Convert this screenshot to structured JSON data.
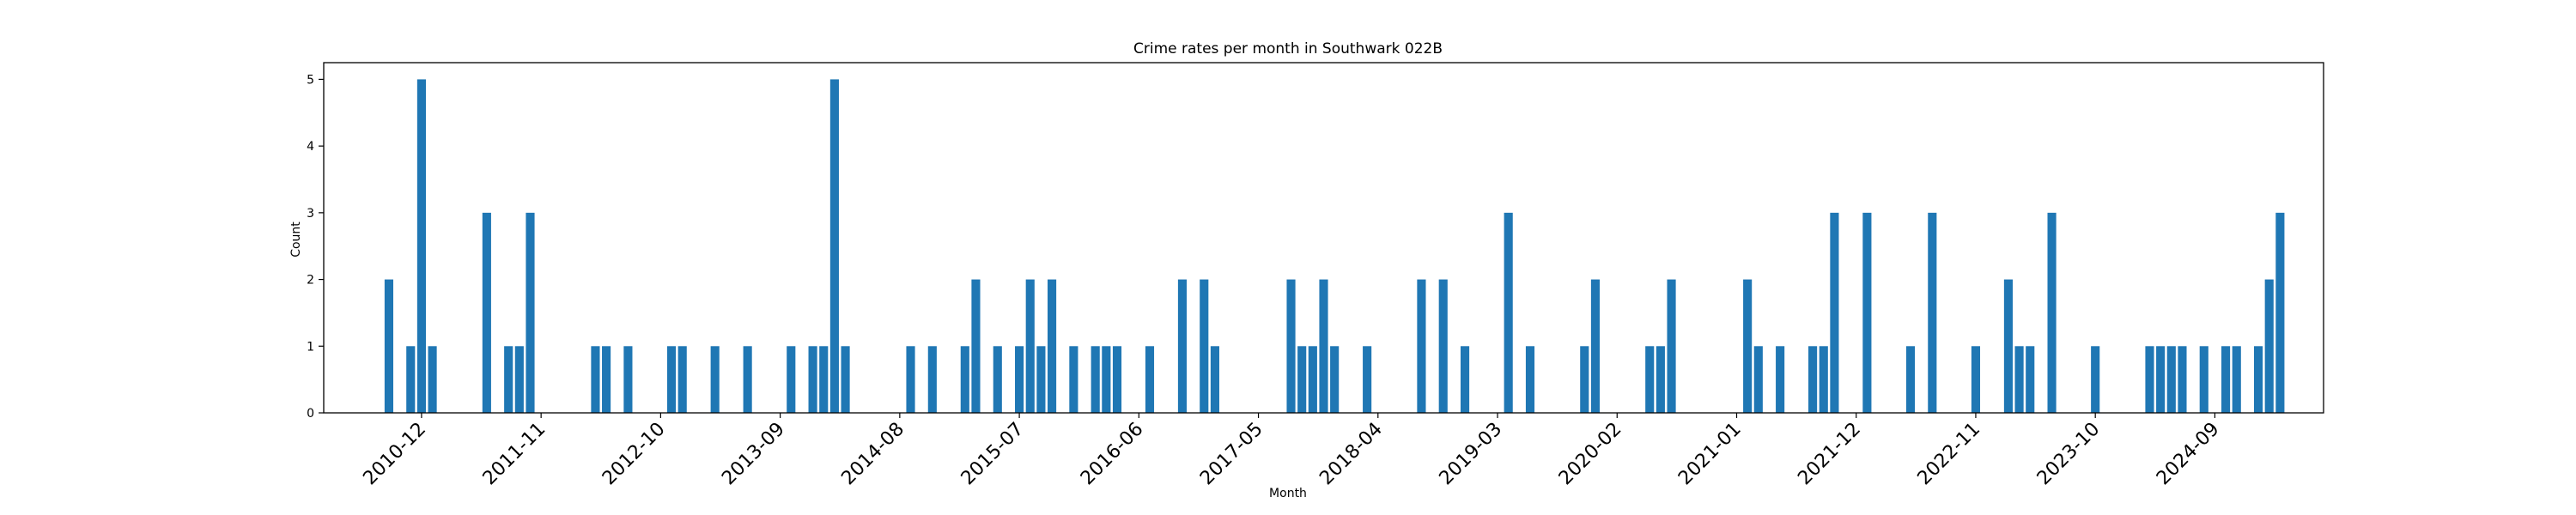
{
  "chart_data": {
    "type": "bar",
    "title": "Crime rates per month in Southwark 022B",
    "xlabel": "Month",
    "ylabel": "Count",
    "ylim": [
      0,
      5.25
    ],
    "yticks": [
      0,
      1,
      2,
      3,
      4,
      5
    ],
    "xlim": [
      "2010-03",
      "2025-07"
    ],
    "xticks": [
      "2010-12",
      "2011-11",
      "2012-10",
      "2013-09",
      "2014-08",
      "2015-07",
      "2016-06",
      "2017-05",
      "2018-04",
      "2019-03",
      "2020-02",
      "2021-01",
      "2021-12",
      "2022-11",
      "2023-10",
      "2024-09"
    ],
    "bar_color": "#1f77b4",
    "categories": [
      "2010-09",
      "2010-11",
      "2010-12",
      "2011-01",
      "2011-06",
      "2011-08",
      "2011-09",
      "2011-10",
      "2012-04",
      "2012-05",
      "2012-07",
      "2012-11",
      "2012-12",
      "2013-03",
      "2013-06",
      "2013-10",
      "2013-12",
      "2014-01",
      "2014-02",
      "2014-03",
      "2014-09",
      "2014-11",
      "2015-02",
      "2015-03",
      "2015-05",
      "2015-07",
      "2015-08",
      "2015-09",
      "2015-10",
      "2015-12",
      "2016-02",
      "2016-03",
      "2016-04",
      "2016-07",
      "2016-10",
      "2016-12",
      "2017-01",
      "2017-08",
      "2017-09",
      "2017-10",
      "2017-11",
      "2017-12",
      "2018-03",
      "2018-08",
      "2018-10",
      "2018-12",
      "2019-04",
      "2019-06",
      "2019-11",
      "2019-12",
      "2020-05",
      "2020-06",
      "2020-07",
      "2021-02",
      "2021-03",
      "2021-05",
      "2021-08",
      "2021-09",
      "2021-10",
      "2022-01",
      "2022-05",
      "2022-07",
      "2022-11",
      "2023-02",
      "2023-03",
      "2023-04",
      "2023-06",
      "2023-10",
      "2024-03",
      "2024-04",
      "2024-05",
      "2024-06",
      "2024-08",
      "2024-10",
      "2024-11",
      "2025-01",
      "2025-02",
      "2025-03"
    ],
    "values": [
      2,
      1,
      5,
      1,
      3,
      1,
      1,
      3,
      1,
      1,
      1,
      1,
      1,
      1,
      1,
      1,
      1,
      1,
      5,
      1,
      1,
      1,
      1,
      2,
      1,
      1,
      2,
      1,
      2,
      1,
      1,
      1,
      1,
      1,
      2,
      2,
      1,
      2,
      1,
      1,
      2,
      1,
      1,
      2,
      2,
      1,
      3,
      1,
      1,
      2,
      1,
      1,
      2,
      2,
      1,
      1,
      1,
      1,
      3,
      3,
      1,
      3,
      1,
      2,
      1,
      1,
      3,
      1,
      1,
      1,
      1,
      1,
      1,
      1,
      1,
      1,
      2,
      3
    ]
  }
}
